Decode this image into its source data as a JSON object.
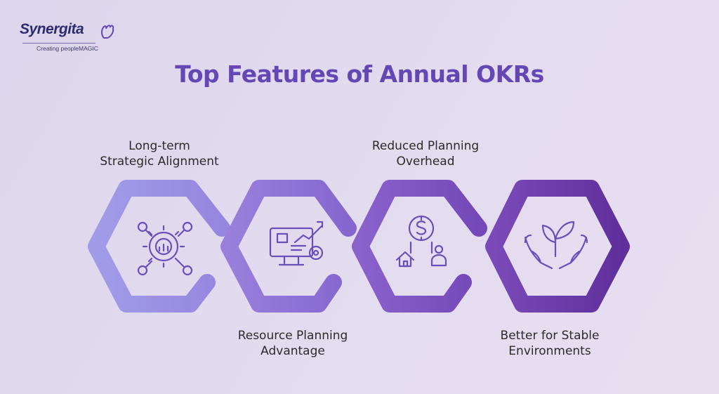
{
  "brand": {
    "name": "Synergita",
    "tagline": "Creating peopleMAGIC"
  },
  "title": "Top Features of Annual OKRs",
  "features": [
    {
      "line1": "Long-term",
      "line2": "Strategic Alignment",
      "icon": "gear-chart-icon"
    },
    {
      "line1": "Resource Planning",
      "line2": "Advantage",
      "icon": "monitor-growth-icon"
    },
    {
      "line1": "Reduced Planning",
      "line2": "Overhead",
      "icon": "money-home-person-icon"
    },
    {
      "line1": "Better for Stable",
      "line2": "Environments",
      "icon": "hands-plant-icon"
    }
  ],
  "colors": {
    "title": "#6446b4",
    "hex1": "#9b92e6",
    "hex2": "#8c70d4",
    "hex3": "#7c55c2",
    "hex4": "#6a3ca8"
  }
}
